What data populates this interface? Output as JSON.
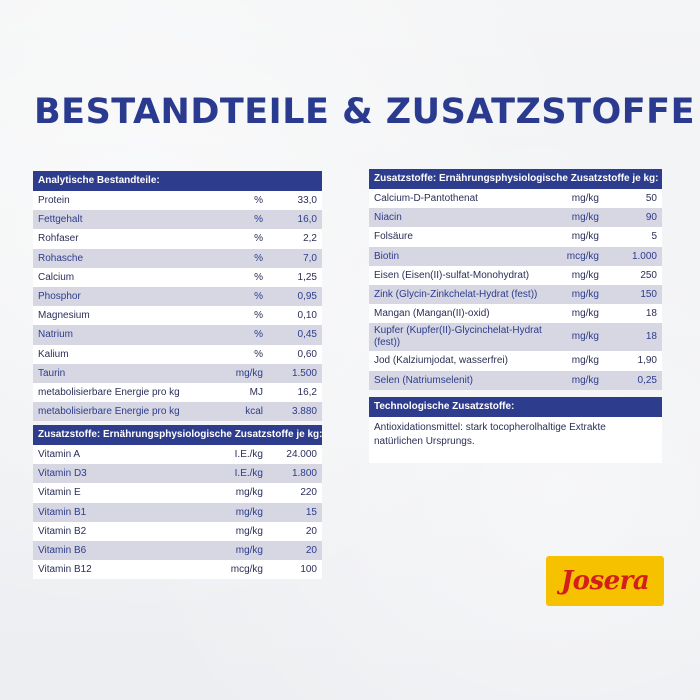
{
  "headline": "BESTANDTEILE & ZUSATZSTOFFE",
  "analytic": {
    "header": "Analytische Bestandteile:",
    "rows": [
      {
        "name": "Protein",
        "unit": "%",
        "value": "33,0"
      },
      {
        "name": "Fettgehalt",
        "unit": "%",
        "value": "16,0"
      },
      {
        "name": "Rohfaser",
        "unit": "%",
        "value": "2,2"
      },
      {
        "name": "Rohasche",
        "unit": "%",
        "value": "7,0"
      },
      {
        "name": "Calcium",
        "unit": "%",
        "value": "1,25"
      },
      {
        "name": "Phosphor",
        "unit": "%",
        "value": "0,95"
      },
      {
        "name": "Magnesium",
        "unit": "%",
        "value": "0,10"
      },
      {
        "name": "Natrium",
        "unit": "%",
        "value": "0,45"
      },
      {
        "name": "Kalium",
        "unit": "%",
        "value": "0,60"
      },
      {
        "name": "Taurin",
        "unit": "mg/kg",
        "value": "1.500"
      },
      {
        "name": "metabolisierbare Energie pro kg",
        "unit": "MJ",
        "value": "16,2"
      },
      {
        "name": "metabolisierbare Energie pro kg",
        "unit": "kcal",
        "value": "3.880"
      }
    ]
  },
  "vitamins": {
    "header": "Zusatzstoffe: Ernährungsphysiologische Zusatzstoffe je kg:",
    "rows": [
      {
        "name": "Vitamin A",
        "unit": "I.E./kg",
        "value": "24.000"
      },
      {
        "name": "Vitamin D3",
        "unit": "I.E./kg",
        "value": "1.800"
      },
      {
        "name": "Vitamin E",
        "unit": "mg/kg",
        "value": "220"
      },
      {
        "name": "Vitamin B1",
        "unit": "mg/kg",
        "value": "15"
      },
      {
        "name": "Vitamin B2",
        "unit": "mg/kg",
        "value": "20"
      },
      {
        "name": "Vitamin B6",
        "unit": "mg/kg",
        "value": "20"
      },
      {
        "name": "Vitamin B12",
        "unit": "mcg/kg",
        "value": "100"
      }
    ]
  },
  "minerals": {
    "header": "Zusatzstoffe: Ernährungsphysiologische Zusatzstoffe je kg:",
    "rows": [
      {
        "name": "Calcium-D-Pantothenat",
        "unit": "mg/kg",
        "value": "50"
      },
      {
        "name": "Niacin",
        "unit": "mg/kg",
        "value": "90"
      },
      {
        "name": "Folsäure",
        "unit": "mg/kg",
        "value": "5"
      },
      {
        "name": "Biotin",
        "unit": "mcg/kg",
        "value": "1.000"
      },
      {
        "name": "Eisen (Eisen(II)-sulfat-Monohydrat)",
        "unit": "mg/kg",
        "value": "250"
      },
      {
        "name": "Zink (Glycin-Zinkchelat-Hydrat (fest))",
        "unit": "mg/kg",
        "value": "150"
      },
      {
        "name": "Mangan (Mangan(II)-oxid)",
        "unit": "mg/kg",
        "value": "18"
      },
      {
        "name": "Kupfer (Kupfer(II)-Glycinchelat-Hydrat (fest))",
        "unit": "mg/kg",
        "value": "18",
        "tall": true
      },
      {
        "name": "Jod (Kalziumjodat, wasserfrei)",
        "unit": "mg/kg",
        "value": "1,90"
      },
      {
        "name": "Selen (Natriumselenit)",
        "unit": "mg/kg",
        "value": "0,25"
      }
    ]
  },
  "tech": {
    "header": "Technologische Zusatzstoffe:",
    "text": "Antioxidationsmittel: stark tocopherolhaltige Extrakte natürlichen Ursprungs."
  },
  "logo": {
    "text": "Josera",
    "bg": "#f6c200",
    "color": "#d21f1b"
  },
  "colors": {
    "header_bg": "#2e3c8e",
    "row_alt": "#d6d7e2",
    "headline": "#2a3a8f"
  }
}
